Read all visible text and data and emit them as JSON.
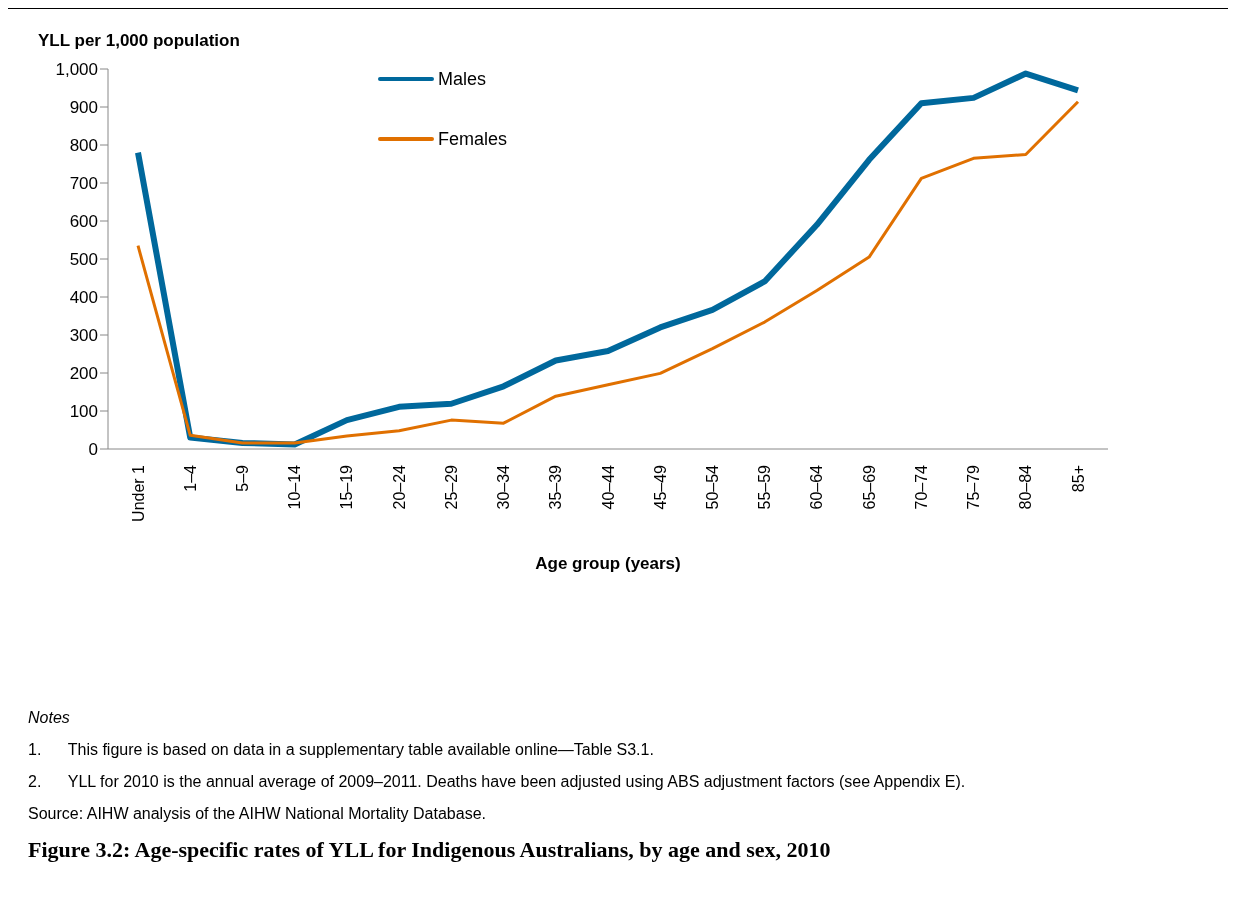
{
  "chart_data": {
    "type": "line",
    "title": "Figure 3.2: Age-specific rates of YLL for Indigenous Australians, by age and sex, 2010",
    "ylabel": "YLL per 1,000 population",
    "xlabel": "Age group (years)",
    "categories": [
      "Under 1",
      "1–4",
      "5–9",
      "10–14",
      "15–19",
      "20–24",
      "25–29",
      "30–34",
      "35–39",
      "40–44",
      "45–49",
      "50–54",
      "55–59",
      "60–64",
      "65–69",
      "70–74",
      "75–79",
      "80–84",
      "85+"
    ],
    "series": [
      {
        "name": "Males",
        "color": "#00689c",
        "values": [
          780,
          30,
          16,
          12,
          76,
          111,
          119,
          165,
          233,
          258,
          320,
          366,
          441,
          590,
          761,
          910,
          924,
          988,
          944
        ]
      },
      {
        "name": "Females",
        "color": "#e07000",
        "values": [
          535,
          36,
          16,
          16,
          34,
          48,
          76,
          68,
          139,
          169,
          199,
          264,
          334,
          417,
          505,
          712,
          765,
          775,
          914
        ]
      }
    ],
    "ylim": [
      0,
      1000
    ],
    "yticks": [
      0,
      100,
      200,
      300,
      400,
      500,
      600,
      700,
      800,
      900,
      {
        "value": 1000,
        "label": "1,000"
      }
    ],
    "grid": false,
    "legend": "top",
    "marker": "none",
    "line_style": "solid",
    "annotations": [
      "Notes",
      "1.      This figure is based on data in a supplementary table available online—Table S3.1.",
      "2.      YLL for 2010 is the annual average of 2009–2011. Deaths have been adjusted using ABS adjustment factors (see Appendix E).",
      "Source: AIHW analysis of the AIHW National Mortality Database."
    ]
  }
}
